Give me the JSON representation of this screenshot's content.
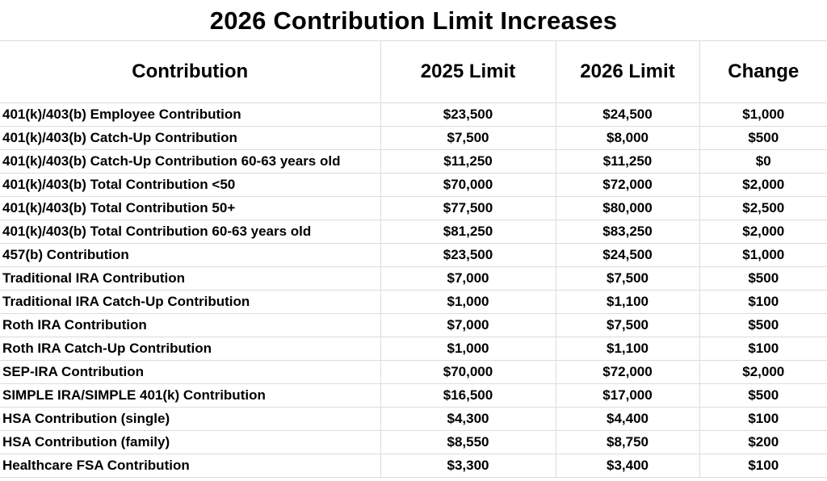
{
  "title": "2026 Contribution Limit Increases",
  "table": {
    "headers": [
      "Contribution",
      "2025 Limit",
      "2026 Limit",
      "Change"
    ],
    "rows": [
      {
        "name": "401(k)/403(b) Employee Contribution",
        "y2025": "$23,500",
        "y2026": "$24,500",
        "change": "$1,000"
      },
      {
        "name": "401(k)/403(b) Catch-Up Contribution",
        "y2025": "$7,500",
        "y2026": "$8,000",
        "change": "$500"
      },
      {
        "name": "401(k)/403(b) Catch-Up Contribution 60-63 years old",
        "y2025": "$11,250",
        "y2026": "$11,250",
        "change": "$0"
      },
      {
        "name": "401(k)/403(b) Total Contribution <50",
        "y2025": "$70,000",
        "y2026": "$72,000",
        "change": "$2,000"
      },
      {
        "name": "401(k)/403(b) Total Contribution 50+",
        "y2025": "$77,500",
        "y2026": "$80,000",
        "change": "$2,500"
      },
      {
        "name": "401(k)/403(b) Total Contribution 60-63 years old",
        "y2025": "$81,250",
        "y2026": "$83,250",
        "change": "$2,000"
      },
      {
        "name": "457(b) Contribution",
        "y2025": "$23,500",
        "y2026": "$24,500",
        "change": "$1,000"
      },
      {
        "name": "Traditional IRA Contribution",
        "y2025": "$7,000",
        "y2026": "$7,500",
        "change": "$500"
      },
      {
        "name": "Traditional IRA Catch-Up Contribution",
        "y2025": "$1,000",
        "y2026": "$1,100",
        "change": "$100"
      },
      {
        "name": "Roth IRA Contribution",
        "y2025": "$7,000",
        "y2026": "$7,500",
        "change": "$500"
      },
      {
        "name": "Roth IRA Catch-Up Contribution",
        "y2025": "$1,000",
        "y2026": "$1,100",
        "change": "$100"
      },
      {
        "name": "SEP-IRA Contribution",
        "y2025": "$70,000",
        "y2026": "$72,000",
        "change": "$2,000"
      },
      {
        "name": "SIMPLE IRA/SIMPLE 401(k) Contribution",
        "y2025": "$16,500",
        "y2026": "$17,000",
        "change": "$500"
      },
      {
        "name": "HSA Contribution (single)",
        "y2025": "$4,300",
        "y2026": "$4,400",
        "change": "$100"
      },
      {
        "name": "HSA Contribution (family)",
        "y2025": "$8,550",
        "y2026": "$8,750",
        "change": "$200"
      },
      {
        "name": "Healthcare FSA Contribution",
        "y2025": "$3,300",
        "y2026": "$3,400",
        "change": "$100"
      }
    ]
  }
}
